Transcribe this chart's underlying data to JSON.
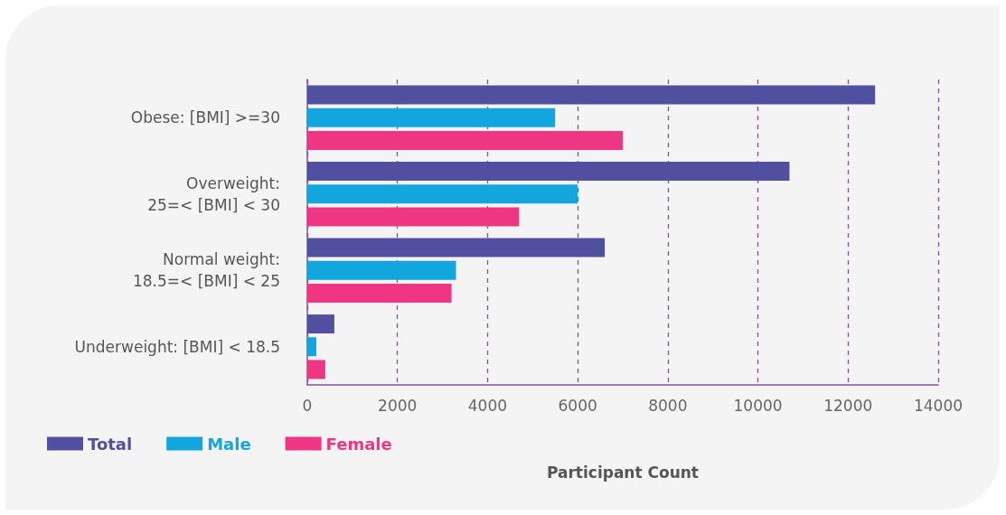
{
  "chart_data": {
    "type": "bar",
    "orientation": "horizontal",
    "xlabel": "Participant Count",
    "categories": [
      "Obese: [BMI] >=30",
      "Overweight:\n25=< [BMI] < 30",
      "Normal weight:\n18.5=< [BMI] < 25",
      "Underweight: [BMI] < 18.5"
    ],
    "series": [
      {
        "name": "Total",
        "color": "#5150a0",
        "values": [
          12600,
          10700,
          6600,
          600
        ]
      },
      {
        "name": "Male",
        "color": "#12a5de",
        "values": [
          5500,
          6000,
          3300,
          200
        ]
      },
      {
        "name": "Female",
        "color": "#ef3683",
        "values": [
          7000,
          4700,
          3200,
          400
        ]
      }
    ],
    "xlim": [
      0,
      14000
    ],
    "xticks": [
      0,
      2000,
      4000,
      6000,
      8000,
      10000,
      12000,
      14000
    ],
    "grid": "x",
    "legend": "bottom left"
  }
}
